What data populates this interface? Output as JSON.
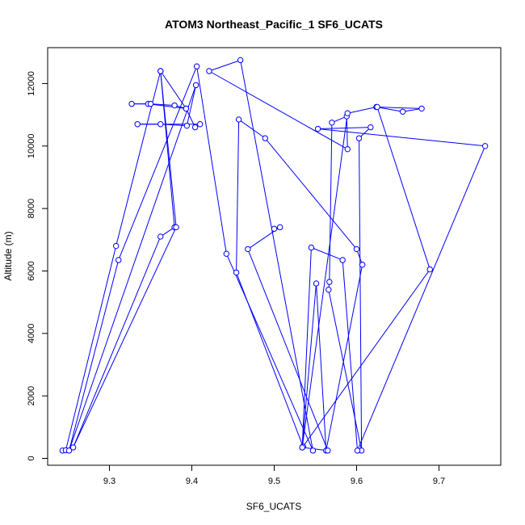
{
  "chart_data": {
    "type": "line",
    "title": "ATOM3 Northeast_Pacific_1 SF6_UCATS",
    "xlabel": "SF6_UCATS",
    "ylabel": "Altitude (m)",
    "xlim": [
      9.225,
      9.775
    ],
    "ylim": [
      -220,
      13150
    ],
    "xticks": [
      9.3,
      9.4,
      9.5,
      9.6,
      9.7
    ],
    "xtick_labels": [
      "9.3",
      "9.4",
      "9.5",
      "9.6",
      "9.7"
    ],
    "yticks": [
      0,
      2000,
      4000,
      6000,
      8000,
      10000,
      12000
    ],
    "ytick_labels": [
      "0",
      "2000",
      "4000",
      "6000",
      "8000",
      "10000",
      "12000"
    ],
    "grid": false,
    "colors": {
      "series": "#0000ff",
      "axes": "#000000"
    },
    "series": [
      {
        "marker": "open-circle",
        "x": [
          9.243,
          9.247,
          9.308,
          9.362,
          9.379,
          9.362,
          9.256,
          9.381,
          9.362,
          9.393,
          9.347,
          9.327,
          9.35,
          9.379,
          9.393,
          9.404,
          9.41,
          9.334,
          9.362,
          9.394,
          9.405,
          9.251,
          9.311,
          9.406,
          9.442,
          9.547,
          9.459,
          9.421,
          9.589,
          9.588,
          9.57,
          9.567,
          9.566,
          9.606,
          9.603,
          9.617,
          9.553,
          9.756,
          9.601,
          9.583,
          9.545,
          9.534,
          9.589,
          9.624,
          9.656,
          9.679,
          9.625,
          9.689,
          9.535,
          9.454,
          9.457,
          9.489,
          9.6,
          9.607,
          9.563,
          9.551,
          9.534,
          9.565,
          9.468,
          9.507,
          9.5
        ],
        "y": [
          250,
          260,
          6800,
          12400,
          7400,
          7100,
          350,
          7400,
          12400,
          11200,
          11350,
          11350,
          11350,
          11300,
          11200,
          10600,
          10700,
          10700,
          10700,
          10650,
          11950,
          250,
          6350,
          12550,
          6550,
          250,
          12750,
          12400,
          9900,
          10950,
          10750,
          5650,
          5400,
          250,
          10250,
          10600,
          10550,
          10000,
          250,
          6350,
          6750,
          350,
          11050,
          11250,
          11100,
          11200,
          11250,
          6050,
          380,
          5950,
          10850,
          10250,
          6700,
          6200,
          250,
          5600,
          350,
          250,
          6700,
          7400,
          7350
        ]
      }
    ]
  }
}
